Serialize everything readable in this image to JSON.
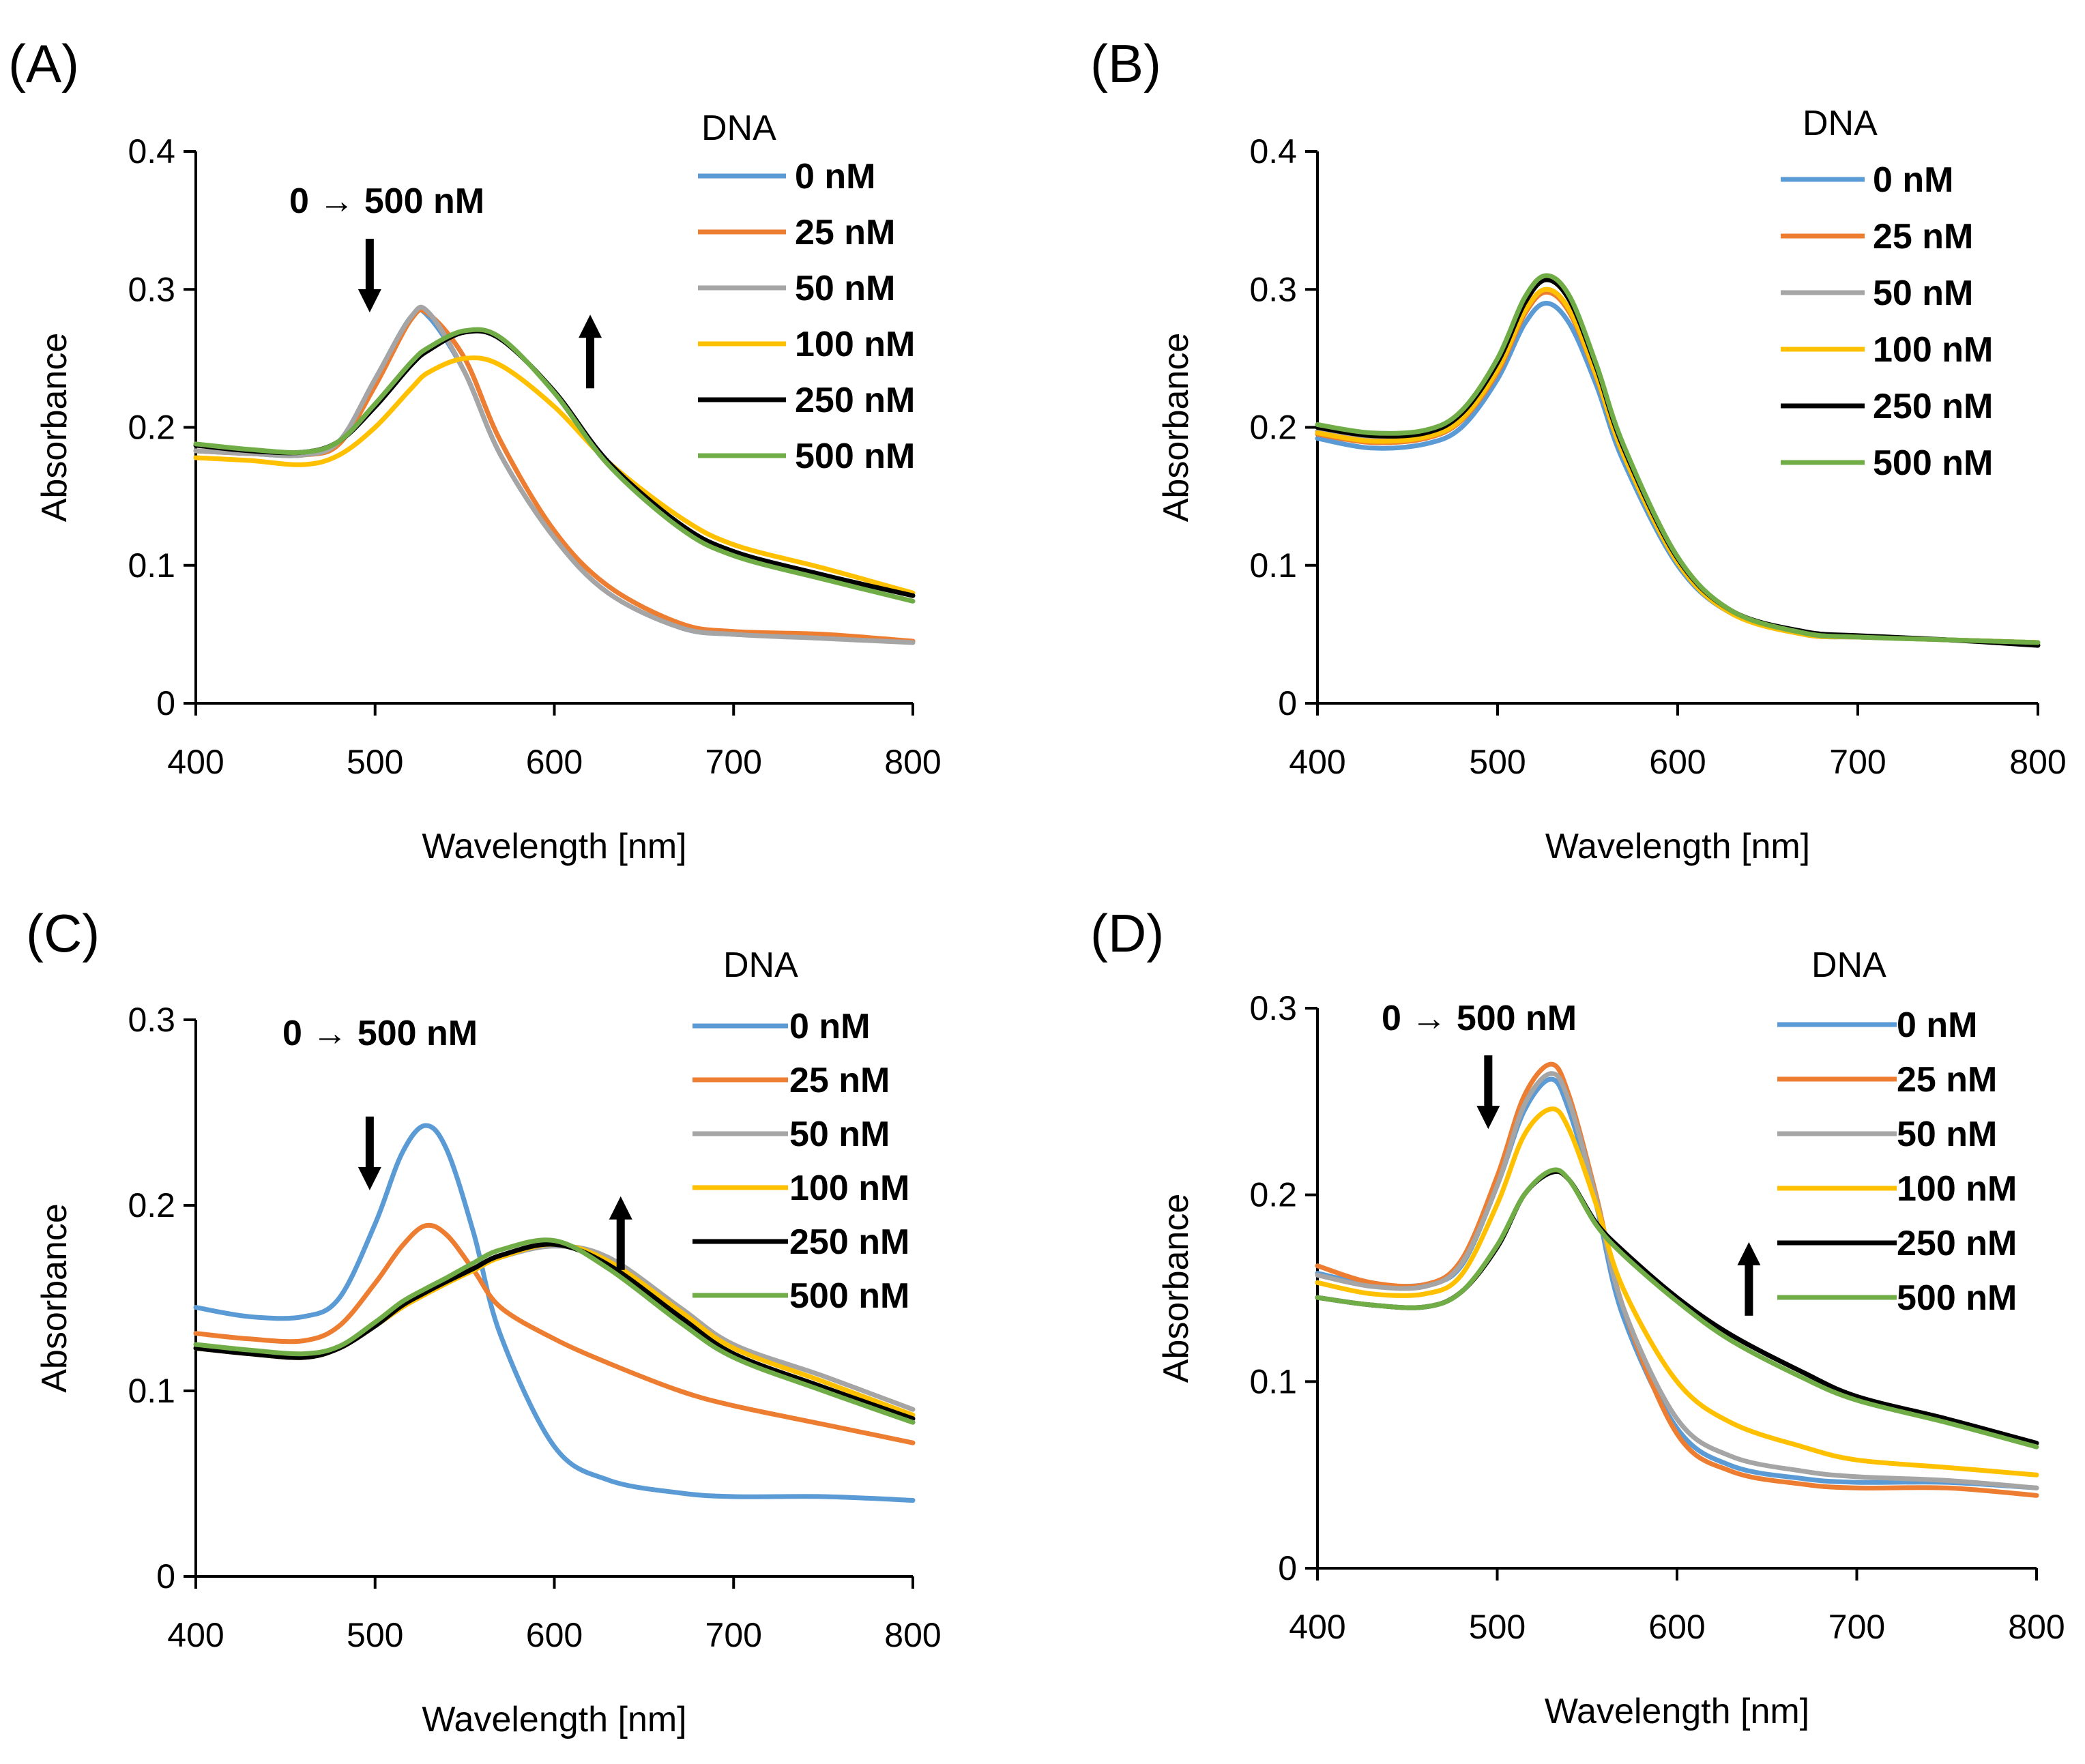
{
  "chart_data": [
    {
      "panel": "(A)",
      "type": "line",
      "title": "",
      "xlabel": "Wavelength [nm]",
      "ylabel": "Absorbance",
      "xlim": [
        400,
        800
      ],
      "ylim": [
        0,
        0.4
      ],
      "xticks": [
        "400",
        "500",
        "600",
        "700",
        "800"
      ],
      "yticks": [
        "0",
        "0.1",
        "0.2",
        "0.3",
        "0.4"
      ],
      "legend_title": "DNA",
      "legend_position": "top-right",
      "annotation": "0 → 500 nM",
      "arrows": [
        {
          "x": 497,
          "y": 0.31,
          "dir": "down"
        },
        {
          "x": 620,
          "y": 0.255,
          "dir": "up"
        }
      ],
      "x": [
        400,
        430,
        460,
        480,
        500,
        520,
        530,
        550,
        570,
        600,
        630,
        670,
        700,
        750,
        800
      ],
      "series": [
        {
          "name": "0 nM",
          "color": "#5b9bd5",
          "values": [
            0.183,
            0.181,
            0.18,
            0.19,
            0.235,
            0.28,
            0.28,
            0.24,
            0.18,
            0.12,
            0.08,
            0.055,
            0.05,
            0.048,
            0.045
          ]
        },
        {
          "name": "25 nM",
          "color": "#ed7d31",
          "values": [
            0.183,
            0.181,
            0.18,
            0.188,
            0.23,
            0.278,
            0.282,
            0.25,
            0.19,
            0.125,
            0.085,
            0.058,
            0.052,
            0.05,
            0.045
          ]
        },
        {
          "name": "50 nM",
          "color": "#a5a5a5",
          "values": [
            0.183,
            0.181,
            0.18,
            0.19,
            0.235,
            0.28,
            0.283,
            0.24,
            0.18,
            0.12,
            0.08,
            0.055,
            0.05,
            0.047,
            0.044
          ]
        },
        {
          "name": "100 nM",
          "color": "#ffc000",
          "values": [
            0.178,
            0.176,
            0.173,
            0.18,
            0.2,
            0.228,
            0.24,
            0.25,
            0.245,
            0.215,
            0.175,
            0.135,
            0.115,
            0.098,
            0.08
          ]
        },
        {
          "name": "250 nM",
          "color": "#000000",
          "values": [
            0.187,
            0.183,
            0.182,
            0.19,
            0.215,
            0.245,
            0.256,
            0.269,
            0.264,
            0.226,
            0.175,
            0.13,
            0.11,
            0.093,
            0.078
          ]
        },
        {
          "name": "500 nM",
          "color": "#70ad47",
          "values": [
            0.188,
            0.184,
            0.182,
            0.19,
            0.217,
            0.247,
            0.258,
            0.27,
            0.265,
            0.225,
            0.173,
            0.127,
            0.107,
            0.09,
            0.074
          ]
        }
      ]
    },
    {
      "panel": "(B)",
      "type": "line",
      "title": "",
      "xlabel": "Wavelength [nm]",
      "ylabel": "Absorbance",
      "xlim": [
        400,
        800
      ],
      "ylim": [
        0,
        0.4
      ],
      "xticks": [
        "400",
        "500",
        "600",
        "700",
        "800"
      ],
      "yticks": [
        "0",
        "0.1",
        "0.2",
        "0.3",
        "0.4"
      ],
      "legend_title": "DNA",
      "legend_position": "top-right",
      "x": [
        400,
        430,
        460,
        480,
        500,
        515,
        527,
        540,
        555,
        570,
        600,
        630,
        670,
        700,
        750,
        800
      ],
      "series": [
        {
          "name": "0 nM",
          "color": "#5b9bd5",
          "values": [
            0.192,
            0.185,
            0.188,
            0.2,
            0.235,
            0.275,
            0.29,
            0.275,
            0.23,
            0.175,
            0.1,
            0.065,
            0.05,
            0.048,
            0.046,
            0.044
          ]
        },
        {
          "name": "25 nM",
          "color": "#ed7d31",
          "values": [
            0.195,
            0.189,
            0.192,
            0.205,
            0.24,
            0.282,
            0.298,
            0.283,
            0.236,
            0.18,
            0.103,
            0.066,
            0.05,
            0.048,
            0.046,
            0.044
          ]
        },
        {
          "name": "50 nM",
          "color": "#a5a5a5",
          "values": [
            0.197,
            0.191,
            0.193,
            0.206,
            0.242,
            0.284,
            0.3,
            0.285,
            0.237,
            0.181,
            0.103,
            0.066,
            0.05,
            0.048,
            0.046,
            0.044
          ]
        },
        {
          "name": "100 nM",
          "color": "#ffc000",
          "values": [
            0.196,
            0.19,
            0.193,
            0.206,
            0.242,
            0.284,
            0.3,
            0.285,
            0.237,
            0.18,
            0.102,
            0.065,
            0.05,
            0.048,
            0.046,
            0.044
          ]
        },
        {
          "name": "250 nM",
          "color": "#000000",
          "values": [
            0.2,
            0.194,
            0.196,
            0.21,
            0.247,
            0.29,
            0.307,
            0.292,
            0.243,
            0.185,
            0.105,
            0.067,
            0.052,
            0.049,
            0.046,
            0.042
          ]
        },
        {
          "name": "500 nM",
          "color": "#70ad47",
          "values": [
            0.202,
            0.196,
            0.198,
            0.212,
            0.25,
            0.294,
            0.31,
            0.295,
            0.245,
            0.187,
            0.106,
            0.067,
            0.051,
            0.048,
            0.046,
            0.044
          ]
        }
      ]
    },
    {
      "panel": "(C)",
      "type": "line",
      "title": "",
      "xlabel": "Wavelength [nm]",
      "ylabel": "Absorbance",
      "xlim": [
        400,
        800
      ],
      "ylim": [
        0,
        0.3
      ],
      "xticks": [
        "400",
        "500",
        "600",
        "700",
        "800"
      ],
      "yticks": [
        "0",
        "0.1",
        "0.2",
        "0.3"
      ],
      "legend_title": "DNA",
      "legend_position": "top-right",
      "annotation": "0 → 500 nM",
      "arrows": [
        {
          "x": 497,
          "y": 0.228,
          "dir": "down"
        },
        {
          "x": 637,
          "y": 0.185,
          "dir": "up"
        }
      ],
      "x": [
        400,
        430,
        460,
        480,
        500,
        515,
        528,
        540,
        555,
        570,
        600,
        630,
        670,
        700,
        750,
        800
      ],
      "series": [
        {
          "name": "0 nM",
          "color": "#5b9bd5",
          "values": [
            0.145,
            0.14,
            0.14,
            0.15,
            0.19,
            0.228,
            0.243,
            0.23,
            0.185,
            0.13,
            0.07,
            0.052,
            0.045,
            0.043,
            0.043,
            0.041
          ]
        },
        {
          "name": "25 nM",
          "color": "#ed7d31",
          "values": [
            0.131,
            0.128,
            0.127,
            0.135,
            0.158,
            0.178,
            0.189,
            0.184,
            0.165,
            0.145,
            0.128,
            0.115,
            0.1,
            0.092,
            0.082,
            0.072
          ]
        },
        {
          "name": "50 nM",
          "color": "#a5a5a5",
          "values": [
            0.123,
            0.12,
            0.118,
            0.123,
            0.135,
            0.145,
            0.152,
            0.158,
            0.165,
            0.172,
            0.178,
            0.172,
            0.145,
            0.125,
            0.108,
            0.09
          ]
        },
        {
          "name": "100 nM",
          "color": "#ffc000",
          "values": [
            0.123,
            0.12,
            0.118,
            0.123,
            0.135,
            0.145,
            0.152,
            0.158,
            0.165,
            0.172,
            0.179,
            0.17,
            0.143,
            0.123,
            0.105,
            0.087
          ]
        },
        {
          "name": "250 nM",
          "color": "#000000",
          "values": [
            0.123,
            0.12,
            0.118,
            0.123,
            0.135,
            0.146,
            0.153,
            0.159,
            0.166,
            0.173,
            0.179,
            0.168,
            0.14,
            0.12,
            0.102,
            0.085
          ]
        },
        {
          "name": "500 nM",
          "color": "#70ad47",
          "values": [
            0.125,
            0.122,
            0.12,
            0.124,
            0.137,
            0.148,
            0.155,
            0.161,
            0.169,
            0.176,
            0.181,
            0.166,
            0.137,
            0.118,
            0.1,
            0.083
          ]
        }
      ]
    },
    {
      "panel": "(D)",
      "type": "line",
      "title": "",
      "xlabel": "Wavelength [nm]",
      "ylabel": "Absorbance",
      "xlim": [
        400,
        800
      ],
      "ylim": [
        0,
        0.3
      ],
      "xticks": [
        "400",
        "500",
        "600",
        "700",
        "800"
      ],
      "yticks": [
        "0",
        "0.1",
        "0.2",
        "0.3"
      ],
      "legend_title": "DNA",
      "legend_position": "top-right",
      "annotation": "0 → 500 nM",
      "arrows": [
        {
          "x": 495,
          "y": 0.255,
          "dir": "down"
        },
        {
          "x": 640,
          "y": 0.155,
          "dir": "up"
        }
      ],
      "x": [
        400,
        430,
        460,
        480,
        500,
        515,
        530,
        540,
        555,
        570,
        600,
        630,
        670,
        700,
        750,
        800
      ],
      "series": [
        {
          "name": "0 nM",
          "color": "#5b9bd5",
          "values": [
            0.158,
            0.152,
            0.152,
            0.162,
            0.205,
            0.245,
            0.262,
            0.245,
            0.195,
            0.135,
            0.075,
            0.055,
            0.048,
            0.046,
            0.046,
            0.043
          ]
        },
        {
          "name": "25 nM",
          "color": "#ed7d31",
          "values": [
            0.162,
            0.153,
            0.152,
            0.165,
            0.21,
            0.253,
            0.27,
            0.253,
            0.2,
            0.14,
            0.072,
            0.052,
            0.045,
            0.043,
            0.043,
            0.039
          ]
        },
        {
          "name": "50 nM",
          "color": "#a5a5a5",
          "values": [
            0.157,
            0.151,
            0.151,
            0.163,
            0.205,
            0.248,
            0.265,
            0.25,
            0.198,
            0.14,
            0.08,
            0.06,
            0.052,
            0.049,
            0.047,
            0.043
          ]
        },
        {
          "name": "100 nM",
          "color": "#ffc000",
          "values": [
            0.153,
            0.147,
            0.147,
            0.157,
            0.195,
            0.232,
            0.246,
            0.235,
            0.195,
            0.15,
            0.1,
            0.078,
            0.065,
            0.058,
            0.054,
            0.05
          ]
        },
        {
          "name": "250 nM",
          "color": "#000000",
          "values": [
            0.145,
            0.141,
            0.14,
            0.148,
            0.172,
            0.2,
            0.212,
            0.208,
            0.185,
            0.17,
            0.145,
            0.125,
            0.105,
            0.092,
            0.08,
            0.067
          ]
        },
        {
          "name": "500 nM",
          "color": "#70ad47",
          "values": [
            0.145,
            0.141,
            0.14,
            0.148,
            0.173,
            0.2,
            0.213,
            0.208,
            0.184,
            0.168,
            0.143,
            0.122,
            0.102,
            0.09,
            0.078,
            0.065
          ]
        }
      ]
    }
  ]
}
